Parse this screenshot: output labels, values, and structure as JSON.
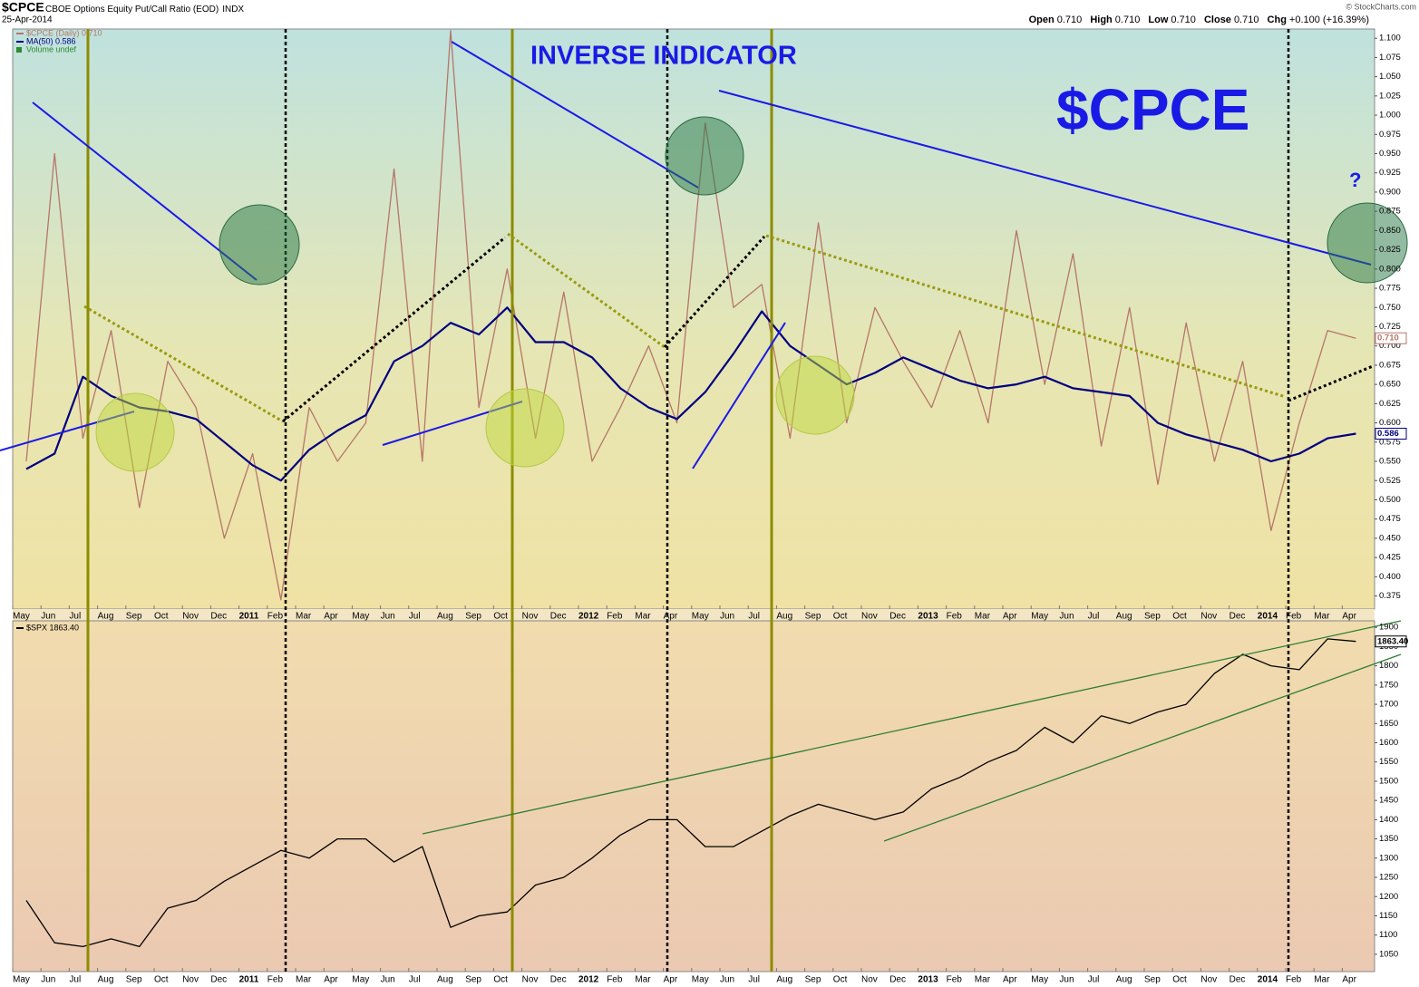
{
  "header": {
    "symbol": "$CPCE",
    "description": "CBOE Options Equity Put/Call Ratio (EOD)",
    "exchange": "INDX",
    "date": "25-Apr-2014",
    "copyright": "© StockCharts.com",
    "quote": [
      {
        "label": "Open",
        "value": "0.710"
      },
      {
        "label": "High",
        "value": "0.710"
      },
      {
        "label": "Low",
        "value": "0.710"
      },
      {
        "label": "Close",
        "value": "0.710"
      },
      {
        "label": "Chg",
        "value": "+0.100 (+16.39%)"
      }
    ]
  },
  "chart_data": [
    {
      "type": "line",
      "annotations": [
        "INVERSE INDICATOR",
        "$CPCE",
        "?"
      ],
      "volume_legend": "Volume undef",
      "x": [
        "2010-05",
        "2010-06",
        "2010-07",
        "2010-08",
        "2010-09",
        "2010-10",
        "2010-11",
        "2010-12",
        "2011-01",
        "2011-02",
        "2011-03",
        "2011-04",
        "2011-05",
        "2011-06",
        "2011-07",
        "2011-08",
        "2011-09",
        "2011-10",
        "2011-11",
        "2011-12",
        "2012-01",
        "2012-02",
        "2012-03",
        "2012-04",
        "2012-05",
        "2012-06",
        "2012-07",
        "2012-08",
        "2012-09",
        "2012-10",
        "2012-11",
        "2012-12",
        "2013-01",
        "2013-02",
        "2013-03",
        "2013-04",
        "2013-05",
        "2013-06",
        "2013-07",
        "2013-08",
        "2013-09",
        "2013-10",
        "2013-11",
        "2013-12",
        "2014-01",
        "2014-02",
        "2014-03",
        "2014-04"
      ],
      "xlim": [
        "2010-05",
        "2014-04"
      ],
      "xticks": [
        {
          "value": "2010-05",
          "label": "May"
        },
        {
          "value": "2010-06",
          "label": "Jun"
        },
        {
          "value": "2010-07",
          "label": "Jul"
        },
        {
          "value": "2010-08",
          "label": "Aug"
        },
        {
          "value": "2010-09",
          "label": "Sep"
        },
        {
          "value": "2010-10",
          "label": "Oct"
        },
        {
          "value": "2010-11",
          "label": "Nov"
        },
        {
          "value": "2010-12",
          "label": "Dec"
        },
        {
          "value": "2011-01",
          "label": "2011"
        },
        {
          "value": "2011-02",
          "label": "Feb"
        },
        {
          "value": "2011-03",
          "label": "Mar"
        },
        {
          "value": "2011-04",
          "label": "Apr"
        },
        {
          "value": "2011-05",
          "label": "May"
        },
        {
          "value": "2011-06",
          "label": "Jun"
        },
        {
          "value": "2011-07",
          "label": "Jul"
        },
        {
          "value": "2011-08",
          "label": "Aug"
        },
        {
          "value": "2011-09",
          "label": "Sep"
        },
        {
          "value": "2011-10",
          "label": "Oct"
        },
        {
          "value": "2011-11",
          "label": "Nov"
        },
        {
          "value": "2011-12",
          "label": "Dec"
        },
        {
          "value": "2012-01",
          "label": "2012"
        },
        {
          "value": "2012-02",
          "label": "Feb"
        },
        {
          "value": "2012-03",
          "label": "Mar"
        },
        {
          "value": "2012-04",
          "label": "Apr"
        },
        {
          "value": "2012-05",
          "label": "May"
        },
        {
          "value": "2012-06",
          "label": "Jun"
        },
        {
          "value": "2012-07",
          "label": "Jul"
        },
        {
          "value": "2012-08",
          "label": "Aug"
        },
        {
          "value": "2012-09",
          "label": "Sep"
        },
        {
          "value": "2012-10",
          "label": "Oct"
        },
        {
          "value": "2012-11",
          "label": "Nov"
        },
        {
          "value": "2012-12",
          "label": "Dec"
        },
        {
          "value": "2013-01",
          "label": "2013"
        },
        {
          "value": "2013-02",
          "label": "Feb"
        },
        {
          "value": "2013-03",
          "label": "Mar"
        },
        {
          "value": "2013-04",
          "label": "Apr"
        },
        {
          "value": "2013-05",
          "label": "May"
        },
        {
          "value": "2013-06",
          "label": "Jun"
        },
        {
          "value": "2013-07",
          "label": "Jul"
        },
        {
          "value": "2013-08",
          "label": "Aug"
        },
        {
          "value": "2013-09",
          "label": "Sep"
        },
        {
          "value": "2013-10",
          "label": "Oct"
        },
        {
          "value": "2013-11",
          "label": "Nov"
        },
        {
          "value": "2013-12",
          "label": "Dec"
        },
        {
          "value": "2014-01",
          "label": "2014"
        },
        {
          "value": "2014-02",
          "label": "Feb"
        },
        {
          "value": "2014-03",
          "label": "Mar"
        },
        {
          "value": "2014-04",
          "label": "Apr"
        }
      ],
      "ylim": [
        0.358,
        1.112
      ],
      "yticks": [
        0.375,
        {
          "value": 0.4,
          "label": "0.400"
        },
        0.425,
        {
          "value": 0.45,
          "label": "0.450"
        },
        0.475,
        {
          "value": 0.5,
          "label": "0.500"
        },
        0.525,
        {
          "value": 0.55,
          "label": "0.550"
        },
        0.575,
        {
          "value": 0.6,
          "label": "0.600"
        },
        0.625,
        {
          "value": 0.65,
          "label": "0.650"
        },
        0.675,
        {
          "value": 0.7,
          "label": "0.700"
        },
        0.725,
        {
          "value": 0.75,
          "label": "0.750"
        },
        0.775,
        {
          "value": 0.8,
          "label": "0.800"
        },
        0.825,
        {
          "value": 0.85,
          "label": "0.850"
        },
        0.875,
        {
          "value": 0.9,
          "label": "0.900"
        },
        0.925,
        {
          "value": 0.95,
          "label": "0.950"
        },
        0.975,
        {
          "value": 1,
          "label": "1.000"
        },
        1.025,
        {
          "value": 1.05,
          "label": "1.050"
        },
        1.075,
        {
          "value": 1.1,
          "label": "1.100"
        }
      ],
      "grid": false,
      "series": [
        {
          "name": "$CPCE (Daily) 0.710",
          "color": "#b5766a",
          "price_label": "0.710",
          "values": [
            0.55,
            0.95,
            0.58,
            0.72,
            0.49,
            0.68,
            0.62,
            0.45,
            0.56,
            0.37,
            0.62,
            0.55,
            0.6,
            0.93,
            0.55,
            1.11,
            0.62,
            0.8,
            0.58,
            0.77,
            0.55,
            0.62,
            0.7,
            0.6,
            0.99,
            0.75,
            0.78,
            0.58,
            0.86,
            0.6,
            0.75,
            0.68,
            0.62,
            0.72,
            0.6,
            0.85,
            0.65,
            0.82,
            0.57,
            0.75,
            0.52,
            0.73,
            0.55,
            0.68,
            0.46,
            0.6,
            0.72,
            0.71
          ]
        },
        {
          "name": "MA(50) 0.586",
          "color": "#000080",
          "price_label": "0.586",
          "values": [
            0.54,
            0.56,
            0.66,
            0.635,
            0.62,
            0.615,
            0.605,
            0.575,
            0.545,
            0.525,
            0.565,
            0.59,
            0.61,
            0.68,
            0.7,
            0.73,
            0.715,
            0.75,
            0.705,
            0.705,
            0.685,
            0.645,
            0.62,
            0.605,
            0.64,
            0.69,
            0.745,
            0.7,
            0.675,
            0.65,
            0.665,
            0.685,
            0.67,
            0.655,
            0.645,
            0.65,
            0.66,
            0.645,
            0.64,
            0.635,
            0.6,
            0.585,
            0.575,
            0.565,
            0.55,
            0.56,
            0.58,
            0.586
          ]
        }
      ]
    },
    {
      "type": "line",
      "x": [
        "2010-05",
        "2010-06",
        "2010-07",
        "2010-08",
        "2010-09",
        "2010-10",
        "2010-11",
        "2010-12",
        "2011-01",
        "2011-02",
        "2011-03",
        "2011-04",
        "2011-05",
        "2011-06",
        "2011-07",
        "2011-08",
        "2011-09",
        "2011-10",
        "2011-11",
        "2011-12",
        "2012-01",
        "2012-02",
        "2012-03",
        "2012-04",
        "2012-05",
        "2012-06",
        "2012-07",
        "2012-08",
        "2012-09",
        "2012-10",
        "2012-11",
        "2012-12",
        "2013-01",
        "2013-02",
        "2013-03",
        "2013-04",
        "2013-05",
        "2013-06",
        "2013-07",
        "2013-08",
        "2013-09",
        "2013-10",
        "2013-11",
        "2013-12",
        "2014-01",
        "2014-02",
        "2014-03",
        "2014-04"
      ],
      "xlim": [
        "2010-05",
        "2014-04"
      ],
      "xticks": [
        {
          "value": "2010-05",
          "label": "May"
        },
        {
          "value": "2010-06",
          "label": "Jun"
        },
        {
          "value": "2010-07",
          "label": "Jul"
        },
        {
          "value": "2010-08",
          "label": "Aug"
        },
        {
          "value": "2010-09",
          "label": "Sep"
        },
        {
          "value": "2010-10",
          "label": "Oct"
        },
        {
          "value": "2010-11",
          "label": "Nov"
        },
        {
          "value": "2010-12",
          "label": "Dec"
        },
        {
          "value": "2011-01",
          "label": "2011"
        },
        {
          "value": "2011-02",
          "label": "Feb"
        },
        {
          "value": "2011-03",
          "label": "Mar"
        },
        {
          "value": "2011-04",
          "label": "Apr"
        },
        {
          "value": "2011-05",
          "label": "May"
        },
        {
          "value": "2011-06",
          "label": "Jun"
        },
        {
          "value": "2011-07",
          "label": "Jul"
        },
        {
          "value": "2011-08",
          "label": "Aug"
        },
        {
          "value": "2011-09",
          "label": "Sep"
        },
        {
          "value": "2011-10",
          "label": "Oct"
        },
        {
          "value": "2011-11",
          "label": "Nov"
        },
        {
          "value": "2011-12",
          "label": "Dec"
        },
        {
          "value": "2012-01",
          "label": "2012"
        },
        {
          "value": "2012-02",
          "label": "Feb"
        },
        {
          "value": "2012-03",
          "label": "Mar"
        },
        {
          "value": "2012-04",
          "label": "Apr"
        },
        {
          "value": "2012-05",
          "label": "May"
        },
        {
          "value": "2012-06",
          "label": "Jun"
        },
        {
          "value": "2012-07",
          "label": "Jul"
        },
        {
          "value": "2012-08",
          "label": "Aug"
        },
        {
          "value": "2012-09",
          "label": "Sep"
        },
        {
          "value": "2012-10",
          "label": "Oct"
        },
        {
          "value": "2012-11",
          "label": "Nov"
        },
        {
          "value": "2012-12",
          "label": "Dec"
        },
        {
          "value": "2013-01",
          "label": "2013"
        },
        {
          "value": "2013-02",
          "label": "Feb"
        },
        {
          "value": "2013-03",
          "label": "Mar"
        },
        {
          "value": "2013-04",
          "label": "Apr"
        },
        {
          "value": "2013-05",
          "label": "May"
        },
        {
          "value": "2013-06",
          "label": "Jun"
        },
        {
          "value": "2013-07",
          "label": "Jul"
        },
        {
          "value": "2013-08",
          "label": "Aug"
        },
        {
          "value": "2013-09",
          "label": "Sep"
        },
        {
          "value": "2013-10",
          "label": "Oct"
        },
        {
          "value": "2013-11",
          "label": "Nov"
        },
        {
          "value": "2013-12",
          "label": "Dec"
        },
        {
          "value": "2014-01",
          "label": "2014"
        },
        {
          "value": "2014-02",
          "label": "Feb"
        },
        {
          "value": "2014-03",
          "label": "Mar"
        },
        {
          "value": "2014-04",
          "label": "Apr"
        }
      ],
      "ylim": [
        1005,
        1917
      ],
      "yticks": [
        1050,
        1100,
        1150,
        1200,
        1250,
        1300,
        1350,
        1400,
        1450,
        1500,
        1550,
        1600,
        1650,
        1700,
        1750,
        1800,
        1850,
        1900
      ],
      "grid": false,
      "series": [
        {
          "name": "$SPX 1863.40",
          "color": "#000000",
          "price_label": "1863.40",
          "values": [
            1190,
            1080,
            1070,
            1090,
            1070,
            1170,
            1190,
            1240,
            1280,
            1320,
            1300,
            1350,
            1350,
            1290,
            1330,
            1120,
            1150,
            1160,
            1230,
            1250,
            1300,
            1360,
            1400,
            1400,
            1330,
            1330,
            1370,
            1410,
            1440,
            1420,
            1400,
            1420,
            1480,
            1510,
            1550,
            1580,
            1640,
            1600,
            1670,
            1650,
            1680,
            1700,
            1780,
            1830,
            1800,
            1790,
            1870,
            1863.4
          ]
        }
      ]
    }
  ]
}
